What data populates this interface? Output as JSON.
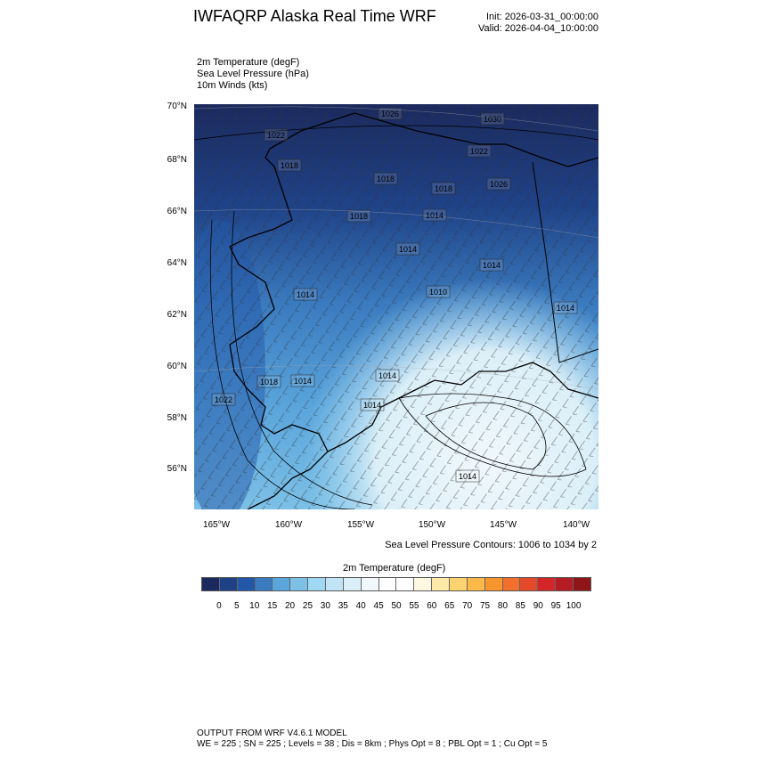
{
  "header": {
    "title": "IWFAQRP Alaska Real Time WRF",
    "init": "Init: 2026-03-31_00:00:00",
    "valid": "Valid: 2026-04-04_10:00:00"
  },
  "fields": [
    "2m Temperature   (degF)",
    "Sea Level Pressure   (hPa)",
    "10m Winds   (kts)"
  ],
  "map": {
    "lat_labels": [
      "70°N",
      "68°N",
      "66°N",
      "64°N",
      "62°N",
      "60°N",
      "58°N",
      "56°N"
    ],
    "lon_labels": [
      "165°W",
      "160°W",
      "155°W",
      "150°W",
      "145°W",
      "140°W"
    ],
    "contour_labels": [
      "1026",
      "1030",
      "1022",
      "1018",
      "1018",
      "1022",
      "1018",
      "1026",
      "1018",
      "1014",
      "1014",
      "1014",
      "1010",
      "1014",
      "1014",
      "1018",
      "1014",
      "1014",
      "1022",
      "1014",
      "1014"
    ]
  },
  "slp_note": "Sea Level Pressure Contours: 1006 to 1034 by 2",
  "colorbar": {
    "title": "2m Temperature  (degF)",
    "labels": [
      "0",
      "5",
      "10",
      "15",
      "20",
      "25",
      "30",
      "35",
      "40",
      "45",
      "50",
      "55",
      "60",
      "65",
      "70",
      "75",
      "80",
      "85",
      "90",
      "95",
      "100"
    ],
    "colors": [
      "#1b2a5e",
      "#1f4287",
      "#2358a8",
      "#3b7cc0",
      "#5aa5dc",
      "#7cc0e6",
      "#a0d8f3",
      "#c0e4f4",
      "#dbeff8",
      "#f0f8fc",
      "#ffffff",
      "#ffffff",
      "#fff8e0",
      "#fde9a8",
      "#fdd370",
      "#fdb84a",
      "#f7952e",
      "#f2702c",
      "#e44a2a",
      "#d42628",
      "#b51c24",
      "#8e1518"
    ]
  },
  "footer": {
    "line1": "OUTPUT FROM WRF V4.6.1 MODEL",
    "line2": "WE = 225 ; SN = 225 ; Levels = 38 ; Dis = 8km ; Phys Opt = 8 ; PBL Opt = 1 ; Cu Opt = 5"
  }
}
